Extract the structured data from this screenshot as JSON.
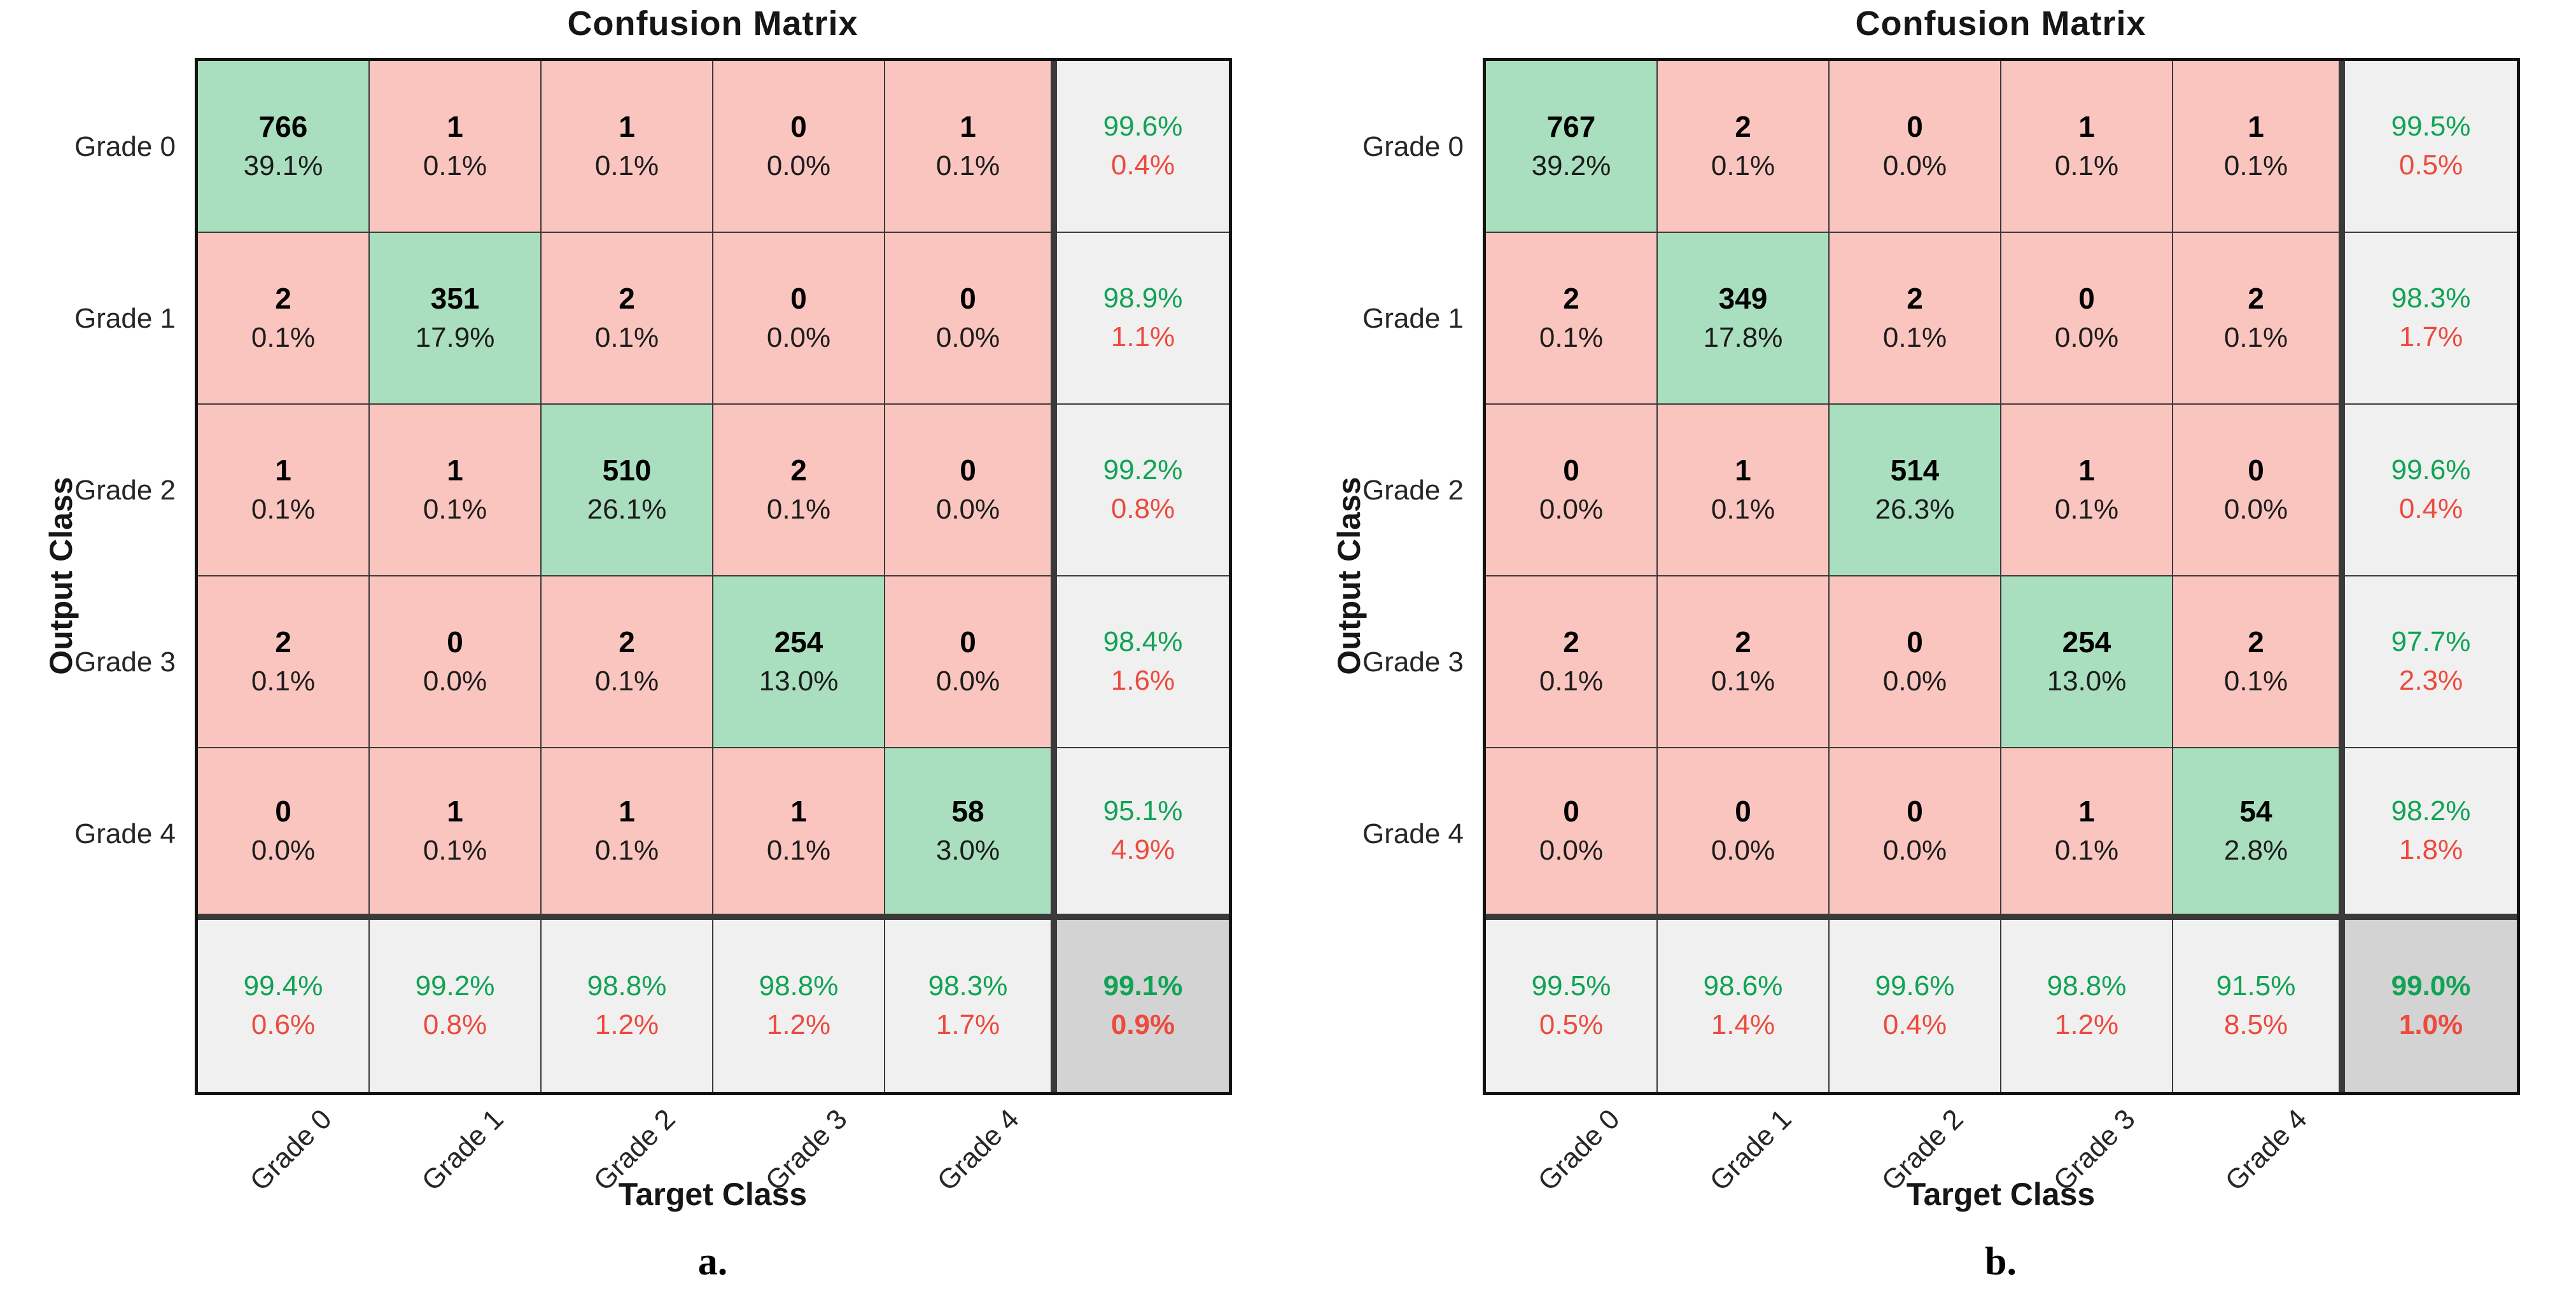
{
  "colors": {
    "correct_cell": "#a9dfbf",
    "incorrect_cell": "#fbc5bf",
    "summary_cell": "#f0f0f0",
    "total_cell": "#d3d3d3",
    "positive_text": "#10a354",
    "negative_text": "#ed4a3e"
  },
  "chart_data": [
    {
      "type": "heatmap",
      "title": "Confusion Matrix",
      "xlabel": "Target Class",
      "ylabel": "Output Class",
      "caption": "a.",
      "legend_position": "none",
      "grid": true,
      "classes": [
        "Grade 0",
        "Grade 1",
        "Grade 2",
        "Grade 3",
        "Grade 4"
      ],
      "counts": [
        [
          766,
          1,
          1,
          0,
          1
        ],
        [
          2,
          351,
          2,
          0,
          0
        ],
        [
          1,
          1,
          510,
          2,
          0
        ],
        [
          2,
          0,
          2,
          254,
          0
        ],
        [
          0,
          1,
          1,
          1,
          58
        ]
      ],
      "cell_pct": [
        [
          "39.1%",
          "0.1%",
          "0.1%",
          "0.0%",
          "0.1%"
        ],
        [
          "0.1%",
          "17.9%",
          "0.1%",
          "0.0%",
          "0.0%"
        ],
        [
          "0.1%",
          "0.1%",
          "26.1%",
          "0.1%",
          "0.0%"
        ],
        [
          "0.1%",
          "0.0%",
          "0.1%",
          "13.0%",
          "0.0%"
        ],
        [
          "0.0%",
          "0.1%",
          "0.1%",
          "0.1%",
          "3.0%"
        ]
      ],
      "row_summary": [
        [
          "99.6%",
          "0.4%"
        ],
        [
          "98.9%",
          "1.1%"
        ],
        [
          "99.2%",
          "0.8%"
        ],
        [
          "98.4%",
          "1.6%"
        ],
        [
          "95.1%",
          "4.9%"
        ]
      ],
      "col_summary": [
        [
          "99.4%",
          "0.6%"
        ],
        [
          "99.2%",
          "0.8%"
        ],
        [
          "98.8%",
          "1.2%"
        ],
        [
          "98.8%",
          "1.2%"
        ],
        [
          "98.3%",
          "1.7%"
        ]
      ],
      "total": [
        "99.1%",
        "0.9%"
      ]
    },
    {
      "type": "heatmap",
      "title": "Confusion Matrix",
      "xlabel": "Target Class",
      "ylabel": "Output Class",
      "caption": "b.",
      "legend_position": "none",
      "grid": true,
      "classes": [
        "Grade 0",
        "Grade 1",
        "Grade 2",
        "Grade 3",
        "Grade 4"
      ],
      "counts": [
        [
          767,
          2,
          0,
          1,
          1
        ],
        [
          2,
          349,
          2,
          0,
          2
        ],
        [
          0,
          1,
          514,
          1,
          0
        ],
        [
          2,
          2,
          0,
          254,
          2
        ],
        [
          0,
          0,
          0,
          1,
          54
        ]
      ],
      "cell_pct": [
        [
          "39.2%",
          "0.1%",
          "0.0%",
          "0.1%",
          "0.1%"
        ],
        [
          "0.1%",
          "17.8%",
          "0.1%",
          "0.0%",
          "0.1%"
        ],
        [
          "0.0%",
          "0.1%",
          "26.3%",
          "0.1%",
          "0.0%"
        ],
        [
          "0.1%",
          "0.1%",
          "0.0%",
          "13.0%",
          "0.1%"
        ],
        [
          "0.0%",
          "0.0%",
          "0.0%",
          "0.1%",
          "2.8%"
        ]
      ],
      "row_summary": [
        [
          "99.5%",
          "0.5%"
        ],
        [
          "98.3%",
          "1.7%"
        ],
        [
          "99.6%",
          "0.4%"
        ],
        [
          "97.7%",
          "2.3%"
        ],
        [
          "98.2%",
          "1.8%"
        ]
      ],
      "col_summary": [
        [
          "99.5%",
          "0.5%"
        ],
        [
          "98.6%",
          "1.4%"
        ],
        [
          "99.6%",
          "0.4%"
        ],
        [
          "98.8%",
          "1.2%"
        ],
        [
          "91.5%",
          "8.5%"
        ]
      ],
      "total": [
        "99.0%",
        "1.0%"
      ]
    }
  ]
}
